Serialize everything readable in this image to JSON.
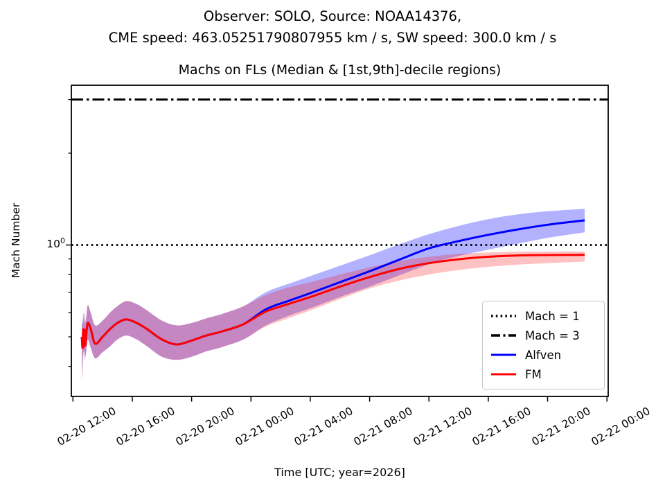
{
  "figure": {
    "title_line1": "Observer: SOLO, Source: NOAA14376,",
    "title_line2": "CME speed: 463.05251790807955 km / s, SW speed: 300.0 km / s"
  },
  "axes": {
    "title": "Machs on FLs (Median & [1st,9th]-decile regions)",
    "xlabel": "Time [UTC; year=2026]",
    "ylabel": "Mach Number",
    "y_tick_base": "10",
    "y_tick_exponent": "0"
  },
  "chart_data": {
    "type": "line",
    "title": "Machs on FLs (Median & [1st,9th]-decile regions)",
    "xlabel": "Time [UTC; year=2026]",
    "ylabel": "Mach Number",
    "y_scale": "log",
    "ylim": [
      0.319,
      3.35
    ],
    "y_major_ticks": [
      1.0
    ],
    "y_minor_ticks": [
      0.4,
      0.5,
      0.6,
      0.7,
      0.8,
      0.9,
      2.0,
      3.0
    ],
    "x_unit_hours_since": "2026-02-20 12:00 UTC",
    "x_ticks_hours": [
      0,
      4,
      8,
      12,
      16,
      20,
      24,
      28,
      32,
      36
    ],
    "x_ticklabels": [
      "02-20 12:00",
      "02-20 16:00",
      "02-20 20:00",
      "02-21 00:00",
      "02-21 04:00",
      "02-21 08:00",
      "02-21 12:00",
      "02-21 16:00",
      "02-21 20:00",
      "02-22 00:00"
    ],
    "hlines": [
      {
        "label": "Mach = 1",
        "value": 1.0,
        "style": "dotted",
        "color": "#000000"
      },
      {
        "label": "Mach = 3",
        "value": 3.0,
        "style": "dashdot",
        "color": "#000000"
      }
    ],
    "series": [
      {
        "name": "Alfven",
        "color": "#0000ff",
        "band_fill": "rgba(0,0,255,0.30)",
        "x_hours": [
          0.6,
          0.65,
          0.7,
          0.75,
          0.8,
          0.85,
          0.9,
          1.0,
          1.2,
          1.5,
          2.0,
          2.5,
          3.0,
          3.6,
          4.3,
          5.0,
          6.0,
          7.0,
          8.0,
          9.0,
          10.0,
          11.5,
          13.0,
          14.5,
          16.0,
          18.0,
          20.0,
          22.0,
          24.0,
          26.0,
          28.0,
          30.0,
          32.0,
          34.5
        ],
        "median": [
          0.5,
          0.46,
          0.53,
          0.465,
          0.525,
          0.47,
          0.51,
          0.555,
          0.53,
          0.475,
          0.5,
          0.53,
          0.555,
          0.57,
          0.555,
          0.53,
          0.49,
          0.472,
          0.486,
          0.505,
          0.52,
          0.55,
          0.615,
          0.655,
          0.695,
          0.755,
          0.82,
          0.895,
          0.975,
          1.03,
          1.08,
          1.125,
          1.165,
          1.205
        ],
        "decile_low": [
          0.36,
          0.4,
          0.45,
          0.42,
          0.45,
          0.43,
          0.45,
          0.49,
          0.46,
          0.425,
          0.445,
          0.465,
          0.49,
          0.505,
          0.49,
          0.465,
          0.43,
          0.42,
          0.43,
          0.448,
          0.462,
          0.49,
          0.545,
          0.585,
          0.62,
          0.675,
          0.73,
          0.795,
          0.865,
          0.92,
          0.965,
          1.01,
          1.055,
          1.1
        ],
        "decile_high": [
          0.565,
          0.55,
          0.6,
          0.55,
          0.6,
          0.56,
          0.58,
          0.635,
          0.6,
          0.545,
          0.565,
          0.6,
          0.63,
          0.655,
          0.64,
          0.61,
          0.565,
          0.545,
          0.555,
          0.575,
          0.593,
          0.63,
          0.7,
          0.745,
          0.79,
          0.855,
          0.925,
          1.005,
          1.085,
          1.155,
          1.215,
          1.26,
          1.29,
          1.315
        ]
      },
      {
        "name": "FM",
        "color": "#ff0000",
        "band_fill": "rgba(255,0,0,0.24)",
        "x_hours": [
          0.6,
          0.65,
          0.7,
          0.75,
          0.8,
          0.85,
          0.9,
          1.0,
          1.2,
          1.5,
          2.0,
          2.5,
          3.0,
          3.6,
          4.3,
          5.0,
          6.0,
          7.0,
          8.0,
          9.0,
          10.0,
          11.5,
          13.0,
          14.5,
          16.0,
          18.0,
          20.0,
          22.0,
          24.0,
          26.0,
          28.0,
          30.0,
          32.0,
          34.5
        ],
        "median": [
          0.5,
          0.46,
          0.53,
          0.465,
          0.525,
          0.47,
          0.51,
          0.555,
          0.53,
          0.475,
          0.5,
          0.53,
          0.555,
          0.57,
          0.555,
          0.53,
          0.49,
          0.472,
          0.486,
          0.505,
          0.52,
          0.55,
          0.605,
          0.64,
          0.675,
          0.73,
          0.785,
          0.835,
          0.872,
          0.898,
          0.915,
          0.924,
          0.927,
          0.928
        ],
        "decile_low": [
          0.36,
          0.4,
          0.45,
          0.42,
          0.45,
          0.43,
          0.45,
          0.49,
          0.46,
          0.425,
          0.445,
          0.465,
          0.49,
          0.505,
          0.49,
          0.465,
          0.43,
          0.42,
          0.43,
          0.448,
          0.462,
          0.49,
          0.54,
          0.575,
          0.61,
          0.665,
          0.72,
          0.765,
          0.8,
          0.828,
          0.848,
          0.862,
          0.872,
          0.882
        ],
        "decile_high": [
          0.565,
          0.55,
          0.6,
          0.55,
          0.6,
          0.56,
          0.58,
          0.635,
          0.6,
          0.545,
          0.565,
          0.6,
          0.63,
          0.655,
          0.64,
          0.61,
          0.565,
          0.545,
          0.555,
          0.575,
          0.593,
          0.63,
          0.685,
          0.725,
          0.755,
          0.8,
          0.845,
          0.885,
          0.915,
          0.935,
          0.945,
          0.95,
          0.952,
          0.952
        ]
      }
    ],
    "legend": {
      "position": "lower right",
      "items": [
        {
          "label": "Mach = 1",
          "style": "dotted",
          "color": "#000000"
        },
        {
          "label": "Mach = 3",
          "style": "dashdot",
          "color": "#000000"
        },
        {
          "label": "Alfven",
          "style": "solid",
          "color": "#0000ff"
        },
        {
          "label": "FM",
          "style": "solid",
          "color": "#ff0000"
        }
      ]
    }
  },
  "colors": {
    "spine": "#000000",
    "background": "#ffffff",
    "alfven": "#0000ff",
    "fm": "#ff0000",
    "legend_border": "#c9c9c9"
  }
}
